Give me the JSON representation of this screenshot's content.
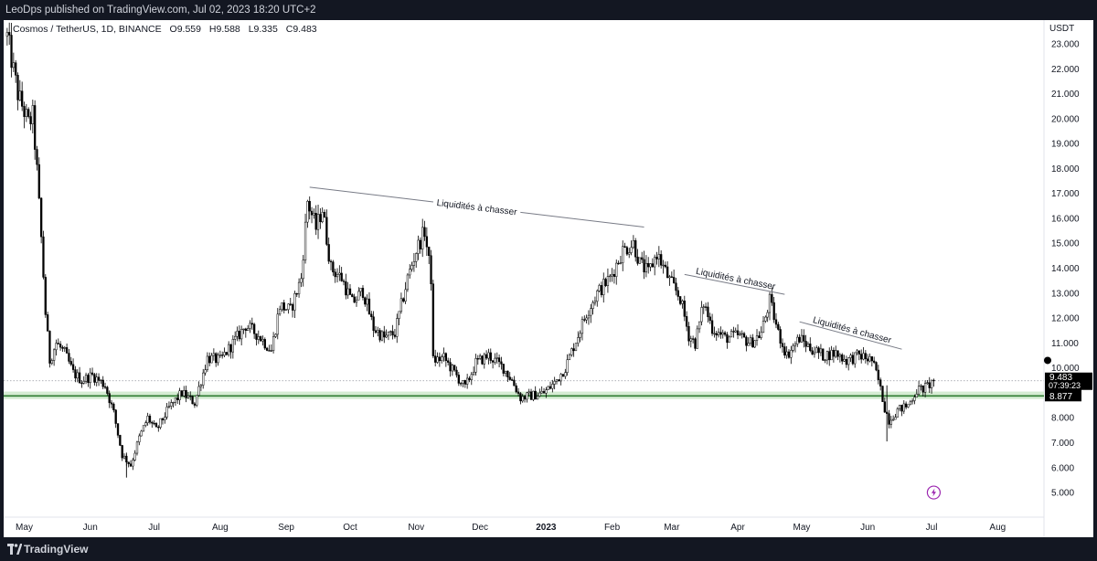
{
  "publish": "LeoDps published on TradingView.com, Jul 02, 2023 18:20 UTC+2",
  "legend": {
    "symbol": "Cosmos / TetherUS, 1D, BINANCE",
    "o_label": "O",
    "o_value": "9.559",
    "h_label": "H",
    "h_value": "9.588",
    "l_label": "L",
    "l_value": "9.335",
    "c_label": "C",
    "c_value": "9.483"
  },
  "footer": {
    "brand": "TradingView"
  },
  "colors": {
    "up": "#ffffff",
    "down": "#000000",
    "outline": "#000000",
    "zone": "#d5ecd3",
    "zone_line": "#2e7d32"
  },
  "chart_data": {
    "type": "candlestick",
    "currency": "USDT",
    "x_tick_labels": [
      "May",
      "Jun",
      "Jul",
      "Aug",
      "Sep",
      "Oct",
      "Nov",
      "Dec",
      "2023",
      "Feb",
      "Mar",
      "Apr",
      "May",
      "Jun",
      "Jul",
      "Aug"
    ],
    "y_tick_labels": [
      "23.000",
      "22.000",
      "21.000",
      "20.000",
      "19.000",
      "18.000",
      "17.000",
      "16.000",
      "15.000",
      "14.000",
      "13.000",
      "12.000",
      "11.000",
      "10.000",
      "8.000",
      "7.000",
      "6.000",
      "5.000"
    ],
    "ylim": [
      4.5,
      23.8
    ],
    "last_price": {
      "value": "9.483",
      "countdown": "07:39:23"
    },
    "support_level": {
      "value": "8.877"
    },
    "support_zone": [
      8.75,
      9.05
    ],
    "trendlines": [
      {
        "from": [
          "2022-09-12",
          17.25
        ],
        "to": [
          "2023-02-16",
          15.65
        ],
        "label": "Liquidités à chasser"
      },
      {
        "from": [
          "2023-03-07",
          13.75
        ],
        "to": [
          "2023-04-23",
          12.95
        ],
        "label": "Liquidités à chasser"
      },
      {
        "from": [
          "2023-04-30",
          11.85
        ],
        "to": [
          "2023-06-17",
          10.75
        ],
        "label": "Liquidités à chasser"
      }
    ],
    "price_path": [
      [
        "2022-04-23",
        23.3
      ],
      [
        "2022-04-28",
        21.0
      ],
      [
        "2022-05-03",
        19.8
      ],
      [
        "2022-05-05",
        20.1
      ],
      [
        "2022-05-07",
        17.9
      ],
      [
        "2022-05-09",
        15.2
      ],
      [
        "2022-05-11",
        12.2
      ],
      [
        "2022-05-13",
        10.3
      ],
      [
        "2022-05-16",
        11.0
      ],
      [
        "2022-05-20",
        10.6
      ],
      [
        "2022-05-24",
        9.8
      ],
      [
        "2022-05-28",
        9.5
      ],
      [
        "2022-06-02",
        9.7
      ],
      [
        "2022-06-08",
        9.3
      ],
      [
        "2022-06-12",
        8.2
      ],
      [
        "2022-06-16",
        6.5
      ],
      [
        "2022-06-20",
        6.1
      ],
      [
        "2022-06-24",
        7.2
      ],
      [
        "2022-06-28",
        8.0
      ],
      [
        "2022-07-02",
        7.5
      ],
      [
        "2022-07-08",
        8.4
      ],
      [
        "2022-07-14",
        9.0
      ],
      [
        "2022-07-20",
        8.6
      ],
      [
        "2022-07-26",
        10.4
      ],
      [
        "2022-08-01",
        10.3
      ],
      [
        "2022-08-07",
        11.0
      ],
      [
        "2022-08-13",
        11.7
      ],
      [
        "2022-08-19",
        11.3
      ],
      [
        "2022-08-25",
        10.7
      ],
      [
        "2022-08-29",
        12.5
      ],
      [
        "2022-09-03",
        12.3
      ],
      [
        "2022-09-08",
        13.6
      ],
      [
        "2022-09-11",
        16.7
      ],
      [
        "2022-09-15",
        15.6
      ],
      [
        "2022-09-18",
        16.4
      ],
      [
        "2022-09-22",
        14.0
      ],
      [
        "2022-09-27",
        13.6
      ],
      [
        "2022-10-02",
        12.6
      ],
      [
        "2022-10-07",
        13.1
      ],
      [
        "2022-10-12",
        11.6
      ],
      [
        "2022-10-17",
        11.2
      ],
      [
        "2022-10-22",
        11.4
      ],
      [
        "2022-10-28",
        13.6
      ],
      [
        "2022-11-01",
        14.7
      ],
      [
        "2022-11-05",
        15.5
      ],
      [
        "2022-11-08",
        13.6
      ],
      [
        "2022-11-09",
        10.3
      ],
      [
        "2022-11-14",
        10.4
      ],
      [
        "2022-11-19",
        9.8
      ],
      [
        "2022-11-24",
        9.2
      ],
      [
        "2022-11-29",
        10.2
      ],
      [
        "2022-12-05",
        10.5
      ],
      [
        "2022-12-12",
        10.0
      ],
      [
        "2022-12-16",
        9.5
      ],
      [
        "2022-12-20",
        8.8
      ],
      [
        "2022-12-26",
        8.9
      ],
      [
        "2022-12-31",
        9.0
      ],
      [
        "2023-01-05",
        9.4
      ],
      [
        "2023-01-10",
        10.0
      ],
      [
        "2023-01-15",
        11.1
      ],
      [
        "2023-01-20",
        12.2
      ],
      [
        "2023-01-25",
        13.0
      ],
      [
        "2023-01-31",
        13.6
      ],
      [
        "2023-02-06",
        14.7
      ],
      [
        "2023-02-11",
        15.0
      ],
      [
        "2023-02-14",
        14.2
      ],
      [
        "2023-02-18",
        13.8
      ],
      [
        "2023-02-22",
        14.6
      ],
      [
        "2023-02-28",
        13.5
      ],
      [
        "2023-03-05",
        12.8
      ],
      [
        "2023-03-09",
        11.3
      ],
      [
        "2023-03-12",
        11.0
      ],
      [
        "2023-03-16",
        12.6
      ],
      [
        "2023-03-20",
        11.6
      ],
      [
        "2023-03-26",
        11.2
      ],
      [
        "2023-04-01",
        11.3
      ],
      [
        "2023-04-07",
        11.0
      ],
      [
        "2023-04-12",
        11.4
      ],
      [
        "2023-04-16",
        12.7
      ],
      [
        "2023-04-20",
        11.4
      ],
      [
        "2023-04-24",
        10.5
      ],
      [
        "2023-04-30",
        11.2
      ],
      [
        "2023-05-05",
        10.8
      ],
      [
        "2023-05-11",
        10.5
      ],
      [
        "2023-05-17",
        10.6
      ],
      [
        "2023-05-22",
        10.3
      ],
      [
        "2023-05-28",
        10.5
      ],
      [
        "2023-06-03",
        10.3
      ],
      [
        "2023-06-06",
        9.5
      ],
      [
        "2023-06-09",
        8.4
      ],
      [
        "2023-06-11",
        7.9
      ],
      [
        "2023-06-15",
        8.3
      ],
      [
        "2023-06-20",
        8.5
      ],
      [
        "2023-06-24",
        9.1
      ],
      [
        "2023-06-28",
        9.2
      ],
      [
        "2023-07-02",
        9.483
      ]
    ]
  }
}
